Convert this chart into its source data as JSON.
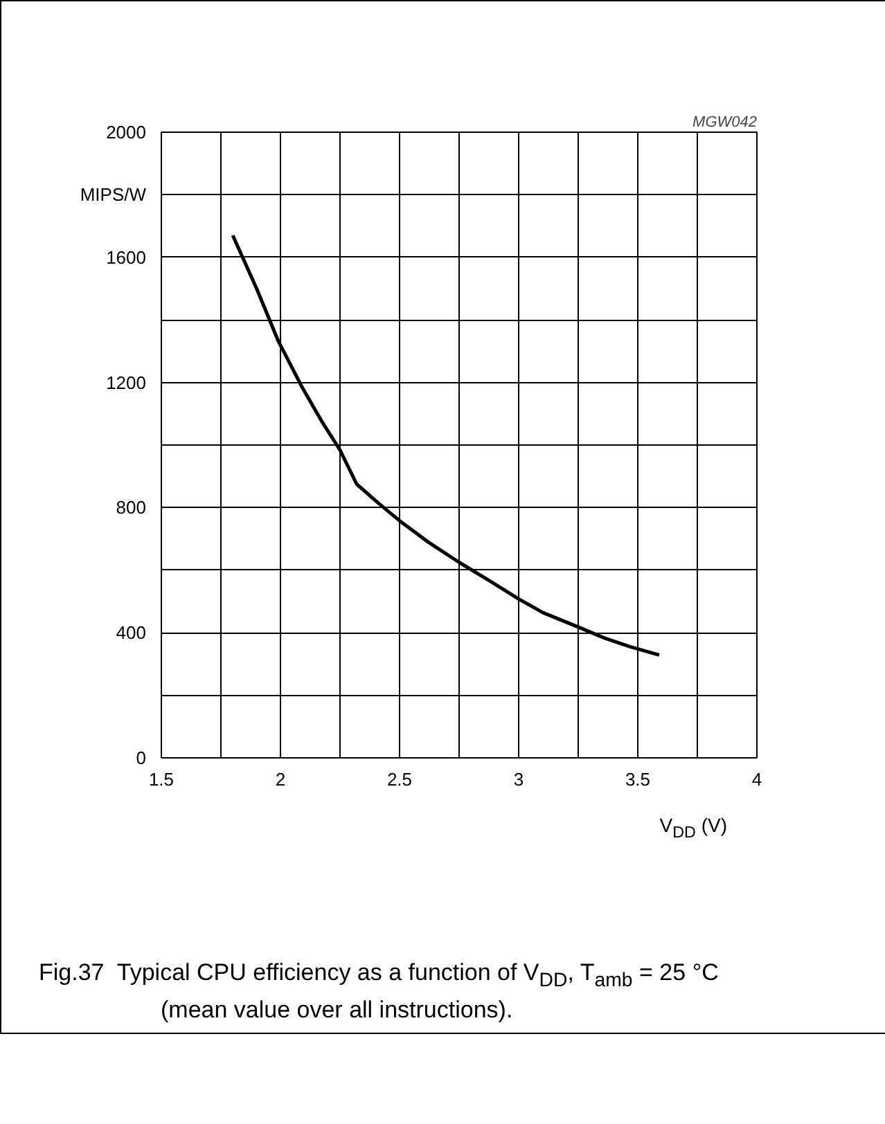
{
  "chart_data": {
    "type": "line",
    "xlabel": "V$_{DD}$ (V)",
    "ylabel": "MIPS/W",
    "annotations": [
      "MGW042",
      "Fig.37  Typical CPU efficiency as a function of V$_{DD}$, T$_{amb}$ = 25 °C (mean value over all instructions)."
    ],
    "x": [
      1.8,
      1.9,
      1.99,
      2.09,
      2.17,
      2.25,
      2.32,
      2.41,
      2.5,
      2.62,
      2.75,
      2.88,
      3.0,
      3.1,
      3.18,
      3.26,
      3.36,
      3.47,
      3.59
    ],
    "series": [
      {
        "color": "#000000",
        "values": [
          1670,
          1500,
          1334,
          1186,
          1080,
          984,
          875,
          815,
          758,
          690,
          625,
          565,
          508,
          465,
          440,
          415,
          383,
          355,
          329
        ]
      }
    ],
    "xlim": [
      1.5,
      4
    ],
    "ylim": [
      0,
      2000
    ],
    "xticks": [
      1.5,
      {
        "value": 1.75,
        "label": null
      },
      2,
      {
        "value": 2.25,
        "label": null
      },
      2.5,
      {
        "value": 2.75,
        "label": null
      },
      3,
      {
        "value": 3.25,
        "label": null
      },
      3.5,
      {
        "value": 3.75,
        "label": null
      },
      4
    ],
    "yticks": [
      0,
      {
        "value": 200,
        "label": null
      },
      400,
      {
        "value": 600,
        "label": null
      },
      800,
      {
        "value": 1000,
        "label": null
      },
      1200,
      {
        "value": 1400,
        "label": null
      },
      1600,
      {
        "value": 1800,
        "label": null
      },
      2000
    ],
    "grid": true,
    "marker": "none",
    "line_style": "solid"
  }
}
